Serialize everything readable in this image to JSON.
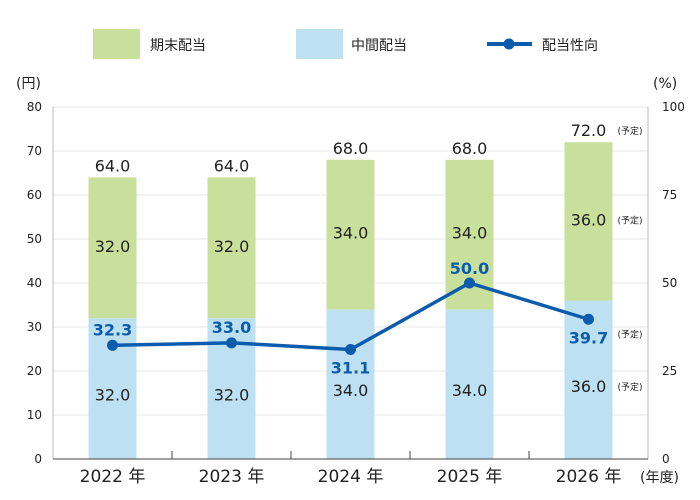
{
  "chart_data": {
    "type": "bar",
    "stacked": true,
    "categories": [
      "2022 年",
      "2023 年",
      "2024 年",
      "2025 年",
      "2026 年"
    ],
    "x_unit": "(年度)",
    "left_unit": "(円)",
    "right_unit": "(%)",
    "left_ticks": [
      "0",
      "10",
      "20",
      "30",
      "40",
      "50",
      "60",
      "70",
      "80"
    ],
    "right_ticks": [
      "0",
      "25",
      "50",
      "75",
      "100"
    ],
    "ylim_left": [
      0,
      80
    ],
    "ylim_right": [
      0,
      100
    ],
    "grid": true,
    "legend_position": "top",
    "series": [
      {
        "name": "中間配当",
        "kind": "bar",
        "color": "#bde0f3",
        "values": [
          32.0,
          32.0,
          34.0,
          34.0,
          36.0
        ],
        "labels": [
          "32.0",
          "32.0",
          "34.0",
          "34.0",
          "36.0"
        ]
      },
      {
        "name": "期末配当",
        "kind": "bar",
        "color": "#c8e09b",
        "values": [
          32.0,
          32.0,
          34.0,
          34.0,
          36.0
        ],
        "labels": [
          "32.0",
          "32.0",
          "34.0",
          "34.0",
          "36.0"
        ]
      },
      {
        "name": "配当性向",
        "kind": "line",
        "axis": "right",
        "color": "#0b5cad",
        "values": [
          32.3,
          33.0,
          31.1,
          50.0,
          39.7
        ],
        "labels": [
          "32.3",
          "33.0",
          "31.1",
          "50.0",
          "39.7"
        ]
      }
    ],
    "totals": [
      "64.0",
      "64.0",
      "68.0",
      "68.0",
      "72.0"
    ],
    "forecast_note": "(予定)"
  }
}
